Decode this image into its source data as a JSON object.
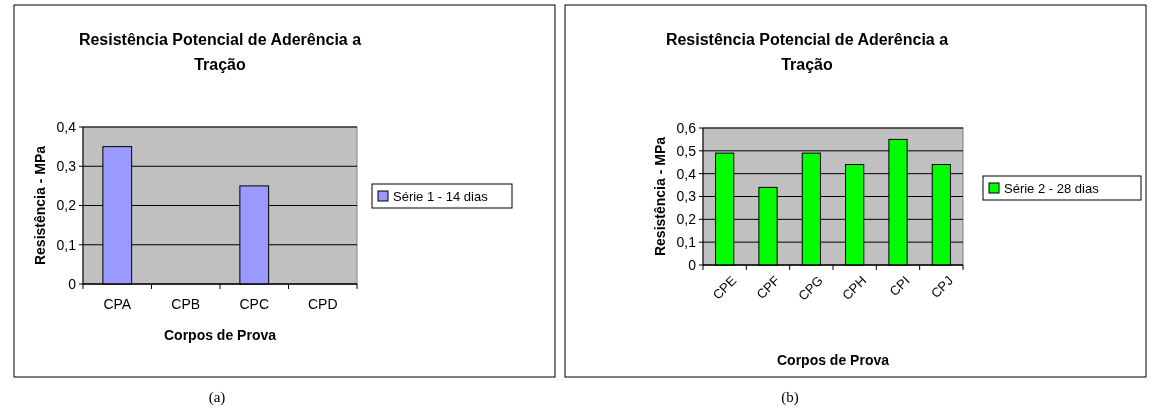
{
  "chart_data": [
    {
      "type": "bar",
      "title": "Resistência Potencial de Aderência a Tração",
      "xlabel": "Corpos de Prova",
      "ylabel": "Resistência - MPa",
      "categories": [
        "CPA",
        "CPB",
        "CPC",
        "CPD"
      ],
      "series": [
        {
          "name": "Série 1 - 14 dias",
          "color": "#9999ff",
          "values": [
            0.35,
            null,
            0.25,
            null
          ]
        }
      ],
      "ylim": [
        0,
        0.4
      ],
      "yticks": [
        {
          "value": 0,
          "label": "0"
        },
        {
          "value": 0.1,
          "label": "0,1"
        },
        {
          "value": 0.2,
          "label": "0,2"
        },
        {
          "value": 0.3,
          "label": "0,3"
        },
        {
          "value": 0.4,
          "label": "0,4"
        }
      ],
      "grid": "y",
      "legend": "right",
      "annotations": [
        "(a)"
      ]
    },
    {
      "type": "bar",
      "title": "Resistência Potencial de Aderência a Tração",
      "xlabel": "Corpos de Prova",
      "ylabel": "Resistência - MPa",
      "categories": [
        "CPE",
        "CPF",
        "CPG",
        "CPH",
        "CPI",
        "CPJ"
      ],
      "series": [
        {
          "name": "Série 2 - 28 dias",
          "color": "#00ff00",
          "values": [
            0.49,
            0.34,
            0.49,
            0.44,
            0.55,
            0.44
          ]
        }
      ],
      "ylim": [
        0,
        0.6
      ],
      "yticks": [
        {
          "value": 0,
          "label": "0"
        },
        {
          "value": 0.1,
          "label": "0,1"
        },
        {
          "value": 0.2,
          "label": "0,2"
        },
        {
          "value": 0.3,
          "label": "0,3"
        },
        {
          "value": 0.4,
          "label": "0,4"
        },
        {
          "value": 0.5,
          "label": "0,5"
        },
        {
          "value": 0.6,
          "label": "0,6"
        }
      ],
      "grid": "y",
      "legend": "right",
      "annotations": [
        "(b)"
      ]
    }
  ]
}
